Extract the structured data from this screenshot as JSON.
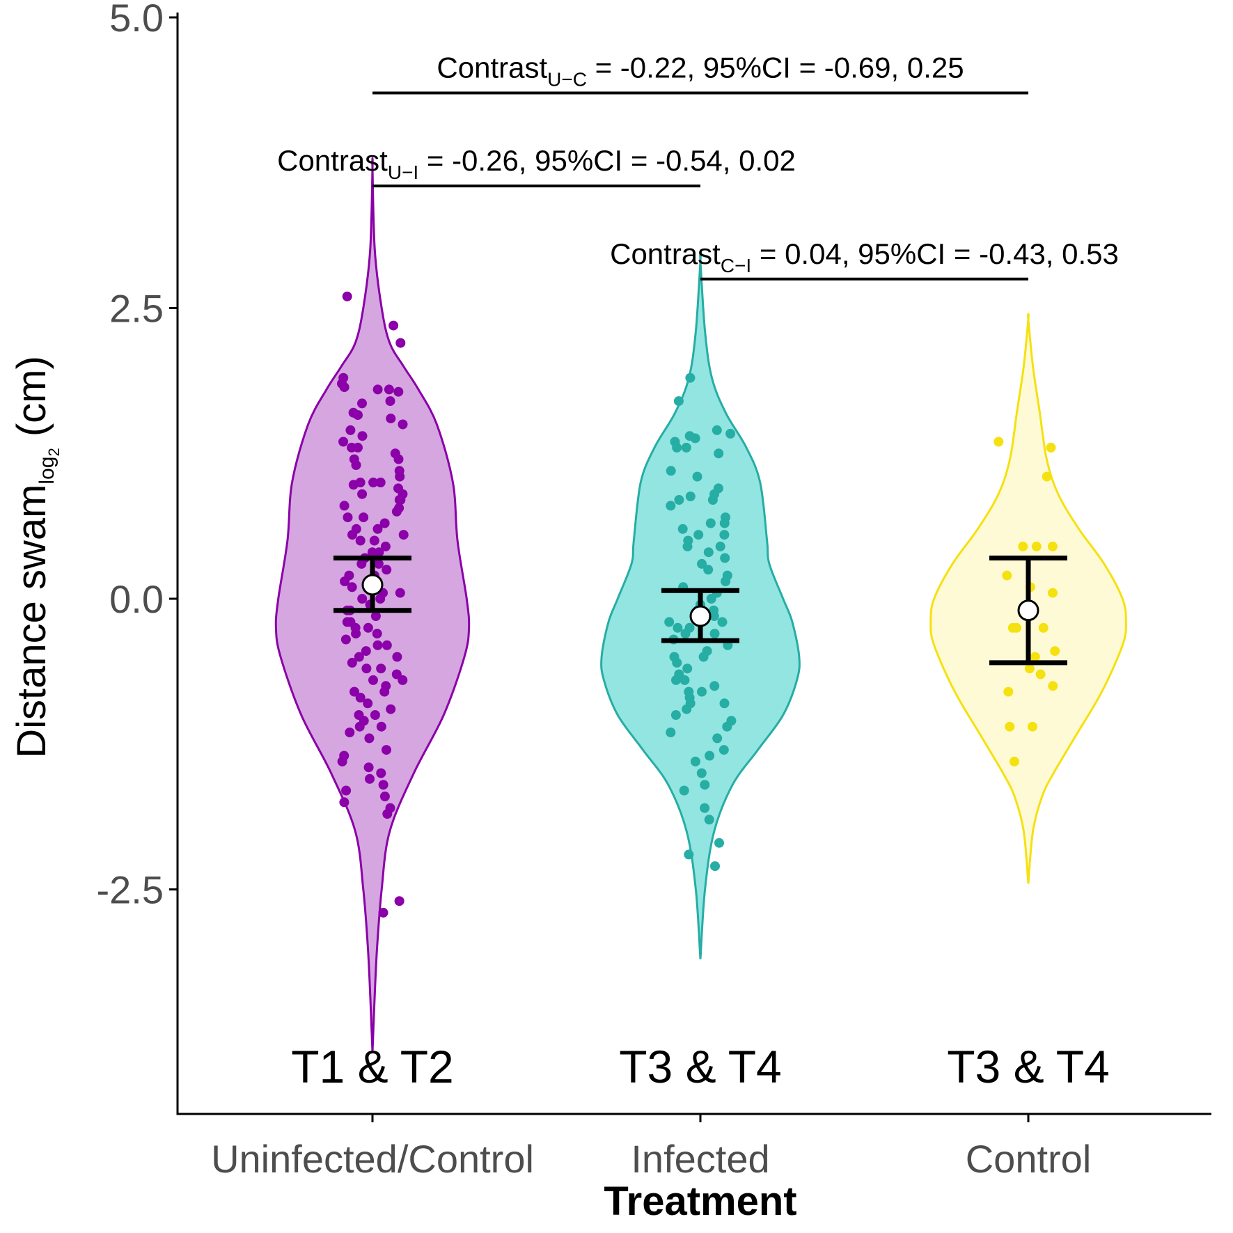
{
  "chart_data": {
    "type": "violin",
    "xlabel": "Treatment",
    "ylabel_main": "Distance swam",
    "ylabel_sub": "log",
    "ylabel_sub2": "2",
    "ylabel_unit": " (cm)",
    "ylim": [
      -4.4,
      5.0
    ],
    "yticks": [
      {
        "value": 5.0,
        "label": "5.0"
      },
      {
        "value": 2.5,
        "label": "2.5"
      },
      {
        "value": 0.0,
        "label": "0.0"
      },
      {
        "value": -2.5,
        "label": "-2.5"
      }
    ],
    "categories": [
      "Uninfected/Control",
      "Infected",
      "Control"
    ],
    "period_labels": [
      "T1 & T2",
      "T3 & T4",
      "T3 & T4"
    ],
    "series": [
      {
        "category": "Uninfected/Control",
        "line_color": "#8B00A8",
        "fill_color": "#D5A6DF",
        "mean": 0.12,
        "ci_low": -0.1,
        "ci_high": 0.35,
        "y_min": -3.9,
        "y_max": 3.7,
        "density": [
          [
            -3.9,
            0.0
          ],
          [
            -3.4,
            0.02
          ],
          [
            -3.0,
            0.04
          ],
          [
            -2.5,
            0.08
          ],
          [
            -2.0,
            0.15
          ],
          [
            -1.5,
            0.36
          ],
          [
            -1.0,
            0.62
          ],
          [
            -0.5,
            0.8
          ],
          [
            -0.25,
            0.84
          ],
          [
            0.0,
            0.82
          ],
          [
            0.5,
            0.74
          ],
          [
            1.0,
            0.7
          ],
          [
            1.5,
            0.56
          ],
          [
            1.8,
            0.4
          ],
          [
            2.0,
            0.27
          ],
          [
            2.2,
            0.15
          ],
          [
            2.5,
            0.08
          ],
          [
            3.0,
            0.02
          ],
          [
            3.7,
            0.0
          ]
        ],
        "points": [
          2.6,
          2.35,
          2.2,
          1.9,
          1.85,
          1.82,
          1.8,
          1.8,
          1.78,
          1.7,
          1.68,
          1.6,
          1.58,
          1.55,
          1.5,
          1.45,
          1.4,
          1.35,
          1.3,
          1.3,
          1.25,
          1.2,
          1.2,
          1.15,
          1.1,
          1.05,
          1.0,
          1.0,
          1.0,
          0.98,
          0.95,
          0.9,
          0.9,
          0.85,
          0.85,
          0.8,
          0.78,
          0.75,
          0.7,
          0.7,
          0.65,
          0.6,
          0.6,
          0.55,
          0.55,
          0.5,
          0.5,
          0.45,
          0.4,
          0.4,
          0.35,
          0.3,
          0.3,
          0.25,
          0.2,
          0.2,
          0.15,
          0.1,
          0.1,
          0.05,
          0.05,
          0.0,
          0.0,
          -0.05,
          -0.1,
          -0.1,
          -0.15,
          -0.2,
          -0.2,
          -0.25,
          -0.25,
          -0.3,
          -0.3,
          -0.35,
          -0.4,
          -0.4,
          -0.45,
          -0.5,
          -0.5,
          -0.55,
          -0.6,
          -0.6,
          -0.65,
          -0.7,
          -0.7,
          -0.75,
          -0.8,
          -0.8,
          -0.85,
          -0.9,
          -0.95,
          -1.0,
          -1.0,
          -1.05,
          -1.1,
          -1.1,
          -1.15,
          -1.2,
          -1.3,
          -1.35,
          -1.4,
          -1.45,
          -1.5,
          -1.55,
          -1.6,
          -1.65,
          -1.7,
          -1.75,
          -1.8,
          -1.85,
          -2.6,
          -2.7
        ]
      },
      {
        "category": "Infected",
        "line_color": "#26ADA4",
        "fill_color": "#92E5E1",
        "mean": -0.15,
        "ci_low": -0.36,
        "ci_high": 0.07,
        "y_min": -3.1,
        "y_max": 2.9,
        "density": [
          [
            -3.1,
            0.0
          ],
          [
            -2.5,
            0.04
          ],
          [
            -2.0,
            0.12
          ],
          [
            -1.6,
            0.28
          ],
          [
            -1.3,
            0.5
          ],
          [
            -1.0,
            0.72
          ],
          [
            -0.7,
            0.84
          ],
          [
            -0.5,
            0.86
          ],
          [
            -0.2,
            0.8
          ],
          [
            0.0,
            0.72
          ],
          [
            0.3,
            0.6
          ],
          [
            0.5,
            0.58
          ],
          [
            1.0,
            0.52
          ],
          [
            1.3,
            0.4
          ],
          [
            1.6,
            0.22
          ],
          [
            1.9,
            0.1
          ],
          [
            2.3,
            0.04
          ],
          [
            2.9,
            0.0
          ]
        ],
        "points": [
          1.9,
          1.7,
          1.45,
          1.42,
          1.4,
          1.38,
          1.35,
          1.3,
          1.3,
          1.25,
          1.1,
          1.05,
          0.95,
          0.9,
          0.88,
          0.85,
          0.85,
          0.8,
          0.7,
          0.65,
          0.65,
          0.6,
          0.55,
          0.55,
          0.5,
          0.45,
          0.45,
          0.4,
          0.35,
          0.3,
          0.25,
          0.2,
          0.15,
          0.1,
          0.05,
          0.0,
          -0.05,
          -0.1,
          -0.1,
          -0.15,
          -0.2,
          -0.2,
          -0.25,
          -0.25,
          -0.3,
          -0.3,
          -0.35,
          -0.4,
          -0.45,
          -0.5,
          -0.5,
          -0.55,
          -0.6,
          -0.65,
          -0.7,
          -0.7,
          -0.75,
          -0.8,
          -0.8,
          -0.85,
          -0.9,
          -0.9,
          -0.95,
          -1.0,
          -1.05,
          -1.1,
          -1.15,
          -1.2,
          -1.3,
          -1.35,
          -1.4,
          -1.5,
          -1.6,
          -1.65,
          -1.8,
          -1.9,
          -2.1,
          -2.2,
          -2.3
        ]
      },
      {
        "category": "Control",
        "line_color": "#F5E10F",
        "fill_color": "#FFFAD6",
        "mean": -0.1,
        "ci_low": -0.55,
        "ci_high": 0.35,
        "y_min": -2.45,
        "y_max": 2.4,
        "density": [
          [
            -2.45,
            0.0
          ],
          [
            -2.0,
            0.04
          ],
          [
            -1.7,
            0.12
          ],
          [
            -1.5,
            0.22
          ],
          [
            -1.2,
            0.4
          ],
          [
            -0.8,
            0.64
          ],
          [
            -0.4,
            0.82
          ],
          [
            -0.2,
            0.85
          ],
          [
            0.0,
            0.82
          ],
          [
            0.3,
            0.66
          ],
          [
            0.6,
            0.44
          ],
          [
            0.9,
            0.26
          ],
          [
            1.2,
            0.16
          ],
          [
            1.6,
            0.1
          ],
          [
            2.0,
            0.04
          ],
          [
            2.4,
            0.0
          ]
        ],
        "points": [
          1.35,
          1.3,
          1.05,
          0.45,
          0.45,
          0.45,
          0.2,
          0.1,
          0.05,
          -0.15,
          -0.25,
          -0.25,
          -0.25,
          -0.45,
          -0.5,
          -0.6,
          -0.65,
          -0.75,
          -0.8,
          -1.1,
          -1.1,
          -1.4
        ]
      }
    ],
    "annotations": [
      {
        "from": 0,
        "to": 2,
        "y": 4.35,
        "text": "Contrast",
        "sub": "U−C",
        "rest": " = -0.22, 95%CI = -0.69, 0.25"
      },
      {
        "from": 0,
        "to": 1,
        "y": 3.55,
        "text": "Contrast",
        "sub": "U−I",
        "rest": " = -0.26, 95%CI = -0.54, 0.02"
      },
      {
        "from": 1,
        "to": 2,
        "y": 2.75,
        "text": "Contrast",
        "sub": "C−I",
        "rest": " = 0.04, 95%CI = -0.43, 0.53"
      }
    ]
  }
}
